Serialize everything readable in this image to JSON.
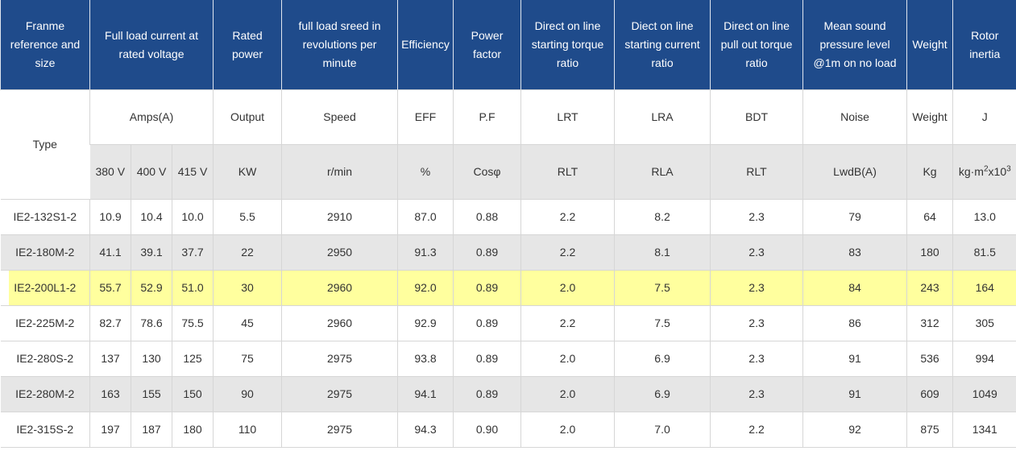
{
  "header": [
    "Franme reference and size",
    "Full load current at rated voltage",
    "Rated power",
    "full load sreed in revolutions per minute",
    "Efficiency",
    "Power factor",
    "Direct on line starting torque ratio",
    "Diect on line starting current ratio",
    "Direct on line pull out torque ratio",
    "Mean sound pressure level @1m on no load",
    "Weight",
    "Rotor inertia"
  ],
  "subheader": [
    "Type",
    "Amps(A)",
    "Output",
    "Speed",
    "EFF",
    "P.F",
    "LRT",
    "LRA",
    "BDT",
    "Noise",
    "Weight",
    "J"
  ],
  "units": [
    "380 V",
    "400 V",
    "415 V",
    "KW",
    "r/min",
    "%",
    "Cosφ",
    "RLT",
    "RLA",
    "RLT",
    "LwdB(A)",
    "Kg",
    [
      "kg·m",
      "2",
      "x10",
      "3"
    ]
  ],
  "rows": [
    [
      "IE2-132S1-2",
      "10.9",
      "10.4",
      "10.0",
      "5.5",
      "2910",
      "87.0",
      "0.88",
      "2.2",
      "8.2",
      "2.3",
      "79",
      "64",
      "13.0"
    ],
    [
      "IE2-180M-2",
      "41.1",
      "39.1",
      "37.7",
      "22",
      "2950",
      "91.3",
      "0.89",
      "2.2",
      "8.1",
      "2.3",
      "83",
      "180",
      "81.5"
    ],
    [
      "IE2-200L1-2",
      "55.7",
      "52.9",
      "51.0",
      "30",
      "2960",
      "92.0",
      "0.89",
      "2.0",
      "7.5",
      "2.3",
      "84",
      "243",
      "164"
    ],
    [
      "IE2-225M-2",
      "82.7",
      "78.6",
      "75.5",
      "45",
      "2960",
      "92.9",
      "0.89",
      "2.2",
      "7.5",
      "2.3",
      "86",
      "312",
      "305"
    ],
    [
      "IE2-280S-2",
      "137",
      "130",
      "125",
      "75",
      "2975",
      "93.8",
      "0.89",
      "2.0",
      "6.9",
      "2.3",
      "91",
      "536",
      "994"
    ],
    [
      "IE2-280M-2",
      "163",
      "155",
      "150",
      "90",
      "2975",
      "94.1",
      "0.89",
      "2.0",
      "6.9",
      "2.3",
      "91",
      "609",
      "1049"
    ],
    [
      "IE2-315S-2",
      "197",
      "187",
      "180",
      "110",
      "2975",
      "94.3",
      "0.90",
      "2.0",
      "7.0",
      "2.2",
      "92",
      "875",
      "1341"
    ]
  ]
}
